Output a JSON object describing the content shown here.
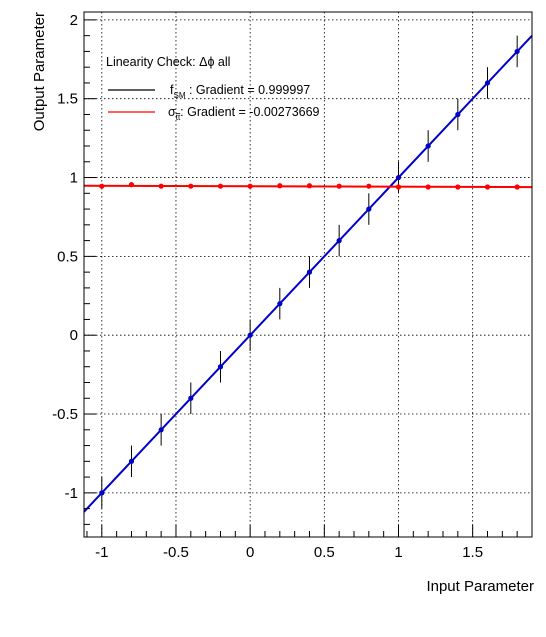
{
  "chart_data": {
    "type": "scatter",
    "xlabel": "Input Parameter",
    "ylabel": "Output Parameter",
    "xlim": [
      -1.12,
      1.9
    ],
    "ylim": [
      -1.28,
      2.05
    ],
    "xticks": [
      "-1",
      "-0.5",
      "0",
      "0.5",
      "1",
      "1.5"
    ],
    "xtick_values": [
      -1,
      -0.5,
      0,
      0.5,
      1,
      1.5
    ],
    "yticks": [
      "-1",
      "-0.5",
      "0",
      "0.5",
      "1",
      "1.5",
      "2"
    ],
    "ytick_values": [
      -1,
      -0.5,
      0,
      0.5,
      1,
      1.5,
      2
    ],
    "grid": true,
    "legend_placement": "top-left",
    "legend": {
      "title": "Linearity Check: Δϕ all",
      "entries": [
        {
          "symbol_main": "f",
          "symbol_sub": "SM",
          "symbol_bar": false,
          "text": " : Gradient = 0.999997"
        },
        {
          "symbol_main": "σ",
          "symbol_sub": "tt",
          "symbol_bar": true,
          "text": ": Gradient = -0.00273669"
        }
      ]
    },
    "series": [
      {
        "color": "#0000cc",
        "fit": {
          "slope": 0.999997,
          "intercept": 0.0,
          "x_range": [
            -1.12,
            1.9
          ]
        },
        "x": [
          -1.0,
          -0.8,
          -0.6,
          -0.4,
          -0.2,
          0.0,
          0.2,
          0.4,
          0.6,
          0.8,
          1.0,
          1.2,
          1.4,
          1.6,
          1.8
        ],
        "y": [
          -1.0,
          -0.8,
          -0.6,
          -0.4,
          -0.2,
          0.0,
          0.2,
          0.4,
          0.6,
          0.8,
          1.0,
          1.2,
          1.4,
          1.6,
          1.8
        ],
        "yerr": [
          0.1,
          0.1,
          0.1,
          0.1,
          0.1,
          0.1,
          0.1,
          0.1,
          0.1,
          0.1,
          0.1,
          0.1,
          0.1,
          0.1,
          0.1
        ]
      },
      {
        "color": "#ff0000",
        "fit": {
          "slope": -0.00273669,
          "intercept": 0.9445,
          "x_range": [
            -1.12,
            1.9
          ]
        },
        "x": [
          -1.0,
          -0.8,
          -0.6,
          -0.4,
          -0.2,
          0.0,
          0.2,
          0.4,
          0.6,
          0.8,
          1.0,
          1.2,
          1.4,
          1.6,
          1.8
        ],
        "y": [
          0.945,
          0.955,
          0.945,
          0.945,
          0.945,
          0.945,
          0.948,
          0.948,
          0.945,
          0.945,
          0.94,
          0.94,
          0.94,
          0.94,
          0.94
        ],
        "yerr": [
          0.01,
          0.01,
          0.01,
          0.01,
          0.01,
          0.01,
          0.01,
          0.01,
          0.01,
          0.01,
          0.01,
          0.01,
          0.01,
          0.01,
          0.01
        ]
      }
    ]
  }
}
